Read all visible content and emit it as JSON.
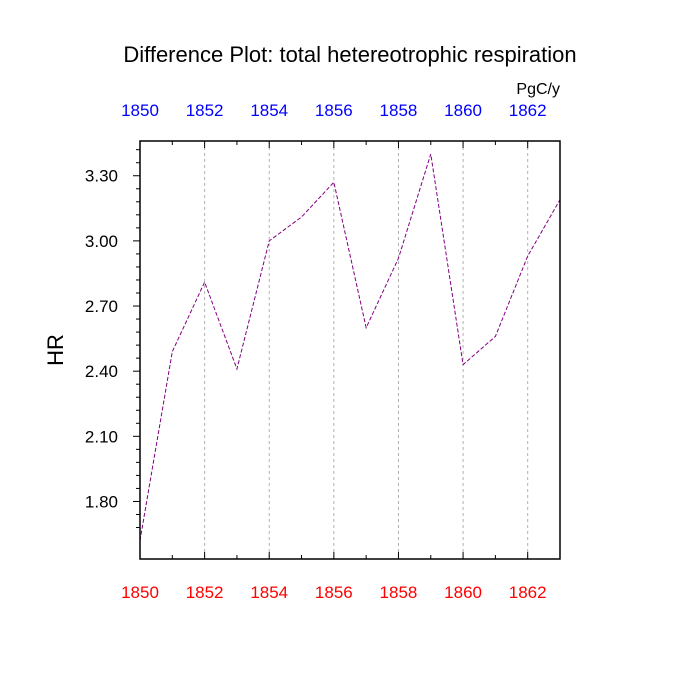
{
  "chart_data": {
    "type": "line",
    "title": "Difference Plot: total hetereotrophic respiration",
    "units": "PgC/y",
    "ylabel": "HR",
    "xlabel": "",
    "x": [
      1850,
      1851,
      1852,
      1853,
      1854,
      1855,
      1856,
      1857,
      1858,
      1859,
      1860,
      1861,
      1862,
      1863
    ],
    "series": [
      {
        "name": "HR",
        "values": [
          1.62,
          2.49,
          2.81,
          2.41,
          3.0,
          3.11,
          3.27,
          2.6,
          2.92,
          3.4,
          2.43,
          2.56,
          2.93,
          3.19
        ],
        "color": "#800080",
        "dashed": true
      }
    ],
    "xlim": [
      1850,
      1863
    ],
    "ylim": [
      1.535,
      3.46
    ],
    "x_ticks_bottom": [
      "1850",
      "1852",
      "1854",
      "1856",
      "1858",
      "1860",
      "1862"
    ],
    "x_ticks_top": [
      "1850",
      "1852",
      "1854",
      "1856",
      "1858",
      "1860",
      "1862"
    ],
    "y_ticks": [
      "1.80",
      "2.10",
      "2.40",
      "2.70",
      "3.00",
      "3.30"
    ],
    "bottom_tick_color": "#ff0000",
    "top_tick_color": "#0000ff",
    "grid": "vertical-dashed"
  }
}
